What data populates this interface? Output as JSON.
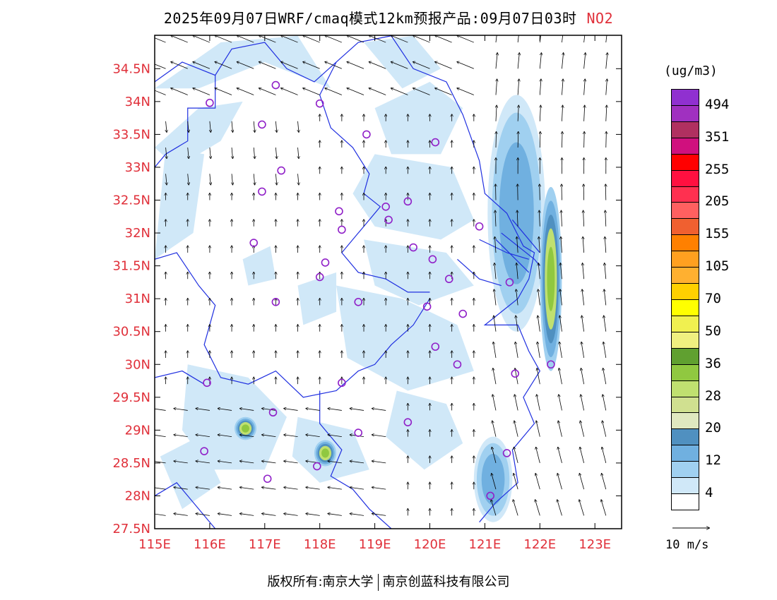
{
  "title": {
    "main": "2025年09月07日WRF/cmaq模式12km预报产品:09月07日03时",
    "pollutant": "NO2"
  },
  "map": {
    "lon_range": [
      115,
      123.5
    ],
    "lat_range": [
      27.5,
      35
    ],
    "lat_ticks": [
      "34.5N",
      "34N",
      "33.5N",
      "33N",
      "32.5N",
      "32N",
      "31.5N",
      "31N",
      "30.5N",
      "30N",
      "29.5N",
      "29N",
      "28.5N",
      "28N",
      "27.5N"
    ],
    "lon_ticks": [
      "115E",
      "116E",
      "117E",
      "118E",
      "119E",
      "120E",
      "121E",
      "122E",
      "123E"
    ],
    "stations": [
      [
        117.2,
        34.25
      ],
      [
        116.0,
        33.98
      ],
      [
        116.95,
        33.65
      ],
      [
        118.0,
        33.97
      ],
      [
        118.85,
        33.5
      ],
      [
        120.1,
        33.38
      ],
      [
        117.3,
        32.95
      ],
      [
        116.95,
        32.63
      ],
      [
        118.35,
        32.33
      ],
      [
        118.4,
        32.05
      ],
      [
        119.2,
        32.4
      ],
      [
        119.25,
        32.2
      ],
      [
        119.6,
        32.48
      ],
      [
        116.8,
        31.85
      ],
      [
        118.1,
        31.55
      ],
      [
        118.0,
        31.33
      ],
      [
        119.7,
        31.78
      ],
      [
        120.05,
        31.6
      ],
      [
        120.35,
        31.3
      ],
      [
        121.45,
        31.25
      ],
      [
        120.9,
        32.1
      ],
      [
        117.2,
        30.95
      ],
      [
        118.7,
        30.95
      ],
      [
        119.95,
        30.88
      ],
      [
        120.6,
        30.77
      ],
      [
        120.1,
        30.27
      ],
      [
        120.5,
        30.0
      ],
      [
        121.55,
        29.86
      ],
      [
        122.2,
        30.0
      ],
      [
        115.95,
        29.72
      ],
      [
        118.4,
        29.72
      ],
      [
        117.15,
        29.27
      ],
      [
        118.7,
        28.96
      ],
      [
        119.6,
        29.12
      ],
      [
        115.9,
        28.68
      ],
      [
        117.95,
        28.45
      ],
      [
        117.05,
        28.26
      ],
      [
        121.4,
        28.65
      ],
      [
        121.1,
        28.0
      ]
    ],
    "no2_cells": [
      {
        "lon": [
          121.25,
          121.95
        ],
        "lat": [
          31.5,
          33.7
        ],
        "level": "high"
      },
      {
        "lon": [
          121.3,
          121.9
        ],
        "lat": [
          31.0,
          33.9
        ],
        "level": "mid"
      },
      {
        "lon": [
          121.05,
          122.1
        ],
        "lat": [
          30.5,
          34.1
        ],
        "level": "low"
      },
      {
        "lon": [
          122.0,
          122.4
        ],
        "lat": [
          29.9,
          32.7
        ],
        "level": "mid"
      },
      {
        "lon": [
          116.45,
          116.85
        ],
        "lat": [
          28.85,
          29.2
        ],
        "level": "mid"
      },
      {
        "lon": [
          117.9,
          118.3
        ],
        "lat": [
          28.45,
          28.85
        ],
        "level": "mid"
      },
      {
        "lon": [
          120.8,
          121.5
        ],
        "lat": [
          27.6,
          28.9
        ],
        "level": "low"
      }
    ]
  },
  "colorbar": {
    "unit": "(ug/m3)",
    "colors": [
      "#9030d0",
      "#a030c0",
      "#b03060",
      "#d0107e",
      "#ff0000",
      "#ff1040",
      "#ff3050",
      "#ff6060",
      "#f06030",
      "#ff8000",
      "#ffa020",
      "#ffb030",
      "#ffd000",
      "#ffff00",
      "#f0f050",
      "#f0f080",
      "#60a030",
      "#90c840",
      "#c0e070",
      "#d0e090",
      "#e0e8c0",
      "#5090c0",
      "#70b0e0",
      "#a0d0f0",
      "#d0e8f8",
      "#ffffff"
    ],
    "labels": [
      "494",
      "351",
      "255",
      "205",
      "155",
      "105",
      "70",
      "50",
      "36",
      "28",
      "20",
      "12",
      "4"
    ]
  },
  "vector_reference": {
    "label": "10 m/s"
  },
  "footer": {
    "copyright": "版权所有:南京大学",
    "company": "南京创蓝科技有限公司"
  }
}
